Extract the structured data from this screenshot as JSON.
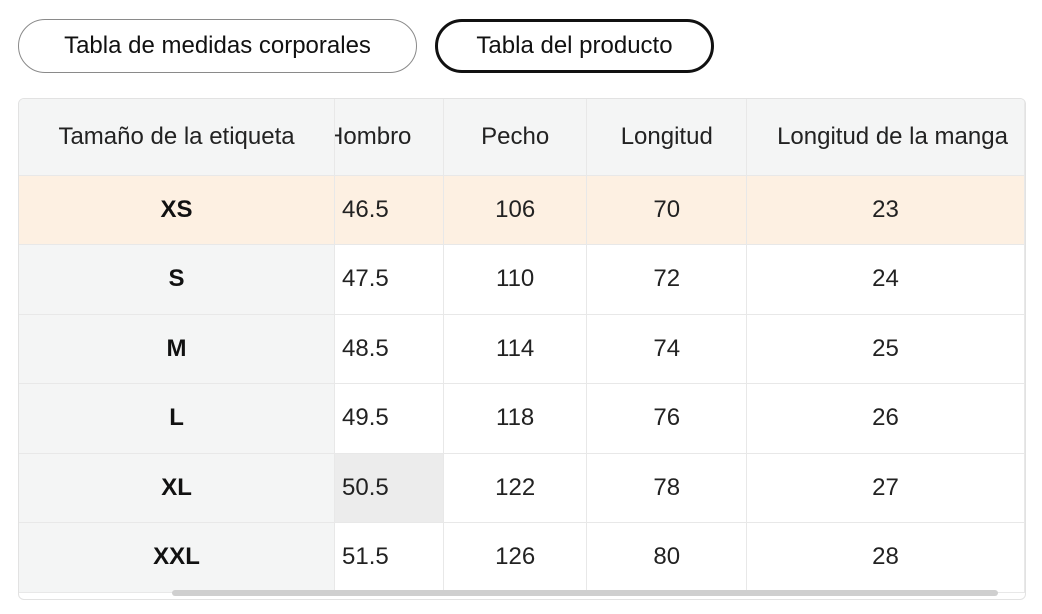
{
  "tabs": {
    "body_measurements": "Tabla de medidas corporales",
    "product": "Tabla del producto"
  },
  "table": {
    "headers": {
      "size": "Tamaño de la etiqueta",
      "shoulder": "Hombro",
      "chest": "Pecho",
      "length": "Longitud",
      "sleeve": "Longitud de la manga"
    },
    "rows": [
      {
        "size": "XS",
        "shoulder": "46.5",
        "chest": "106",
        "length": "70",
        "sleeve": "23"
      },
      {
        "size": "S",
        "shoulder": "47.5",
        "chest": "110",
        "length": "72",
        "sleeve": "24"
      },
      {
        "size": "M",
        "shoulder": "48.5",
        "chest": "114",
        "length": "74",
        "sleeve": "25"
      },
      {
        "size": "L",
        "shoulder": "49.5",
        "chest": "118",
        "length": "76",
        "sleeve": "26"
      },
      {
        "size": "XL",
        "shoulder": "50.5",
        "chest": "122",
        "length": "78",
        "sleeve": "27"
      },
      {
        "size": "XXL",
        "shoulder": "51.5",
        "chest": "126",
        "length": "80",
        "sleeve": "28"
      }
    ],
    "highlighted_size": "XS"
  },
  "colors": {
    "highlight_row": "#fdf0e2",
    "header_bg": "#f4f5f5",
    "active_tab_border": "#111111"
  }
}
